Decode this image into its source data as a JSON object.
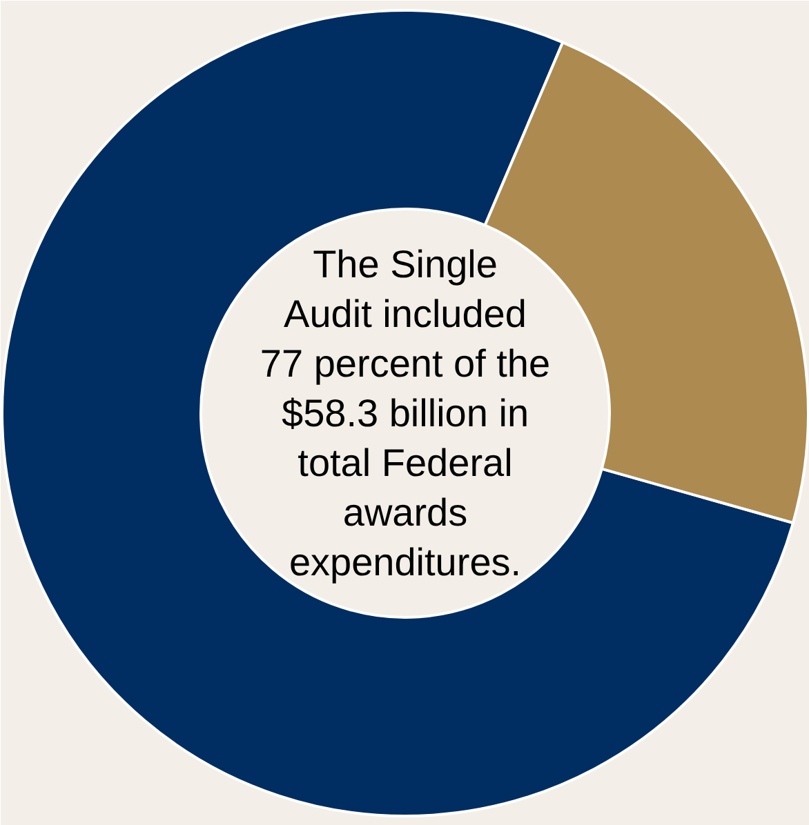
{
  "chart_data": {
    "type": "donut",
    "categories": [
      null,
      null
    ],
    "values": [
      77,
      23
    ],
    "colors": [
      "#002d62",
      "#ad8a4f"
    ],
    "annotations": [
      "The Single Audit included 77 percent of the $58.3 billion in total Federal awards expenditures."
    ]
  }
}
